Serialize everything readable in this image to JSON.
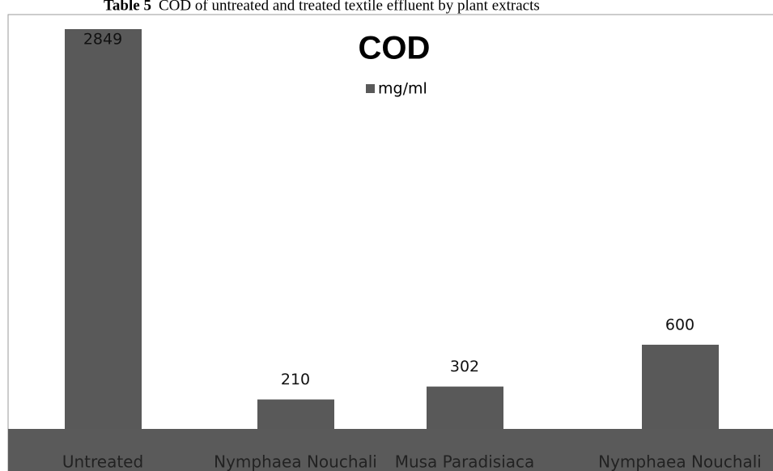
{
  "chart_data": {
    "type": "bar",
    "caption_label": "Table 5",
    "caption": "COD of untreated and treated textile effluent by plant extracts",
    "title": "COD",
    "categories": [
      "Untreated",
      "Nymphaea Nouchali",
      "Musa Paradisiaca",
      "Nymphaea Nouchali"
    ],
    "series": [
      {
        "name": "mg/ml",
        "color": "#595959",
        "values": [
          2849,
          210,
          302,
          600
        ]
      }
    ],
    "ylim": [
      0,
      3000
    ]
  }
}
